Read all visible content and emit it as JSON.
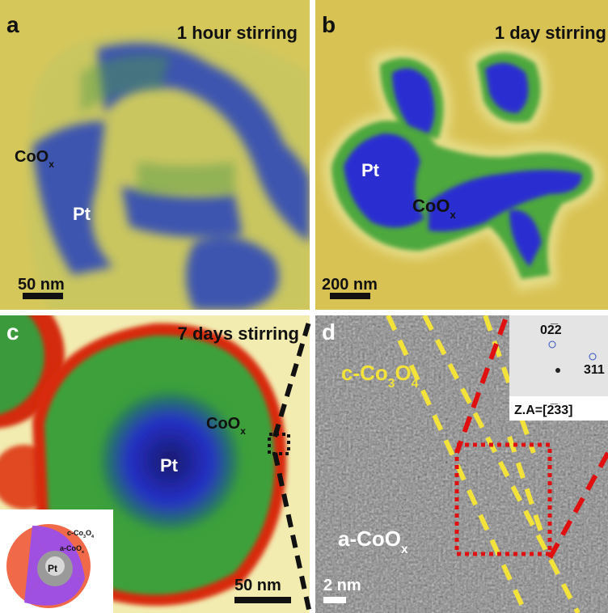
{
  "panels": [
    {
      "label": "a",
      "title": "1 hour stirring",
      "scale_bar": "50 nm",
      "labels": [
        [
          {
            "text": "CoO"
          },
          {
            "text": "x",
            "sub": true
          }
        ],
        [
          {
            "text": "Pt"
          }
        ]
      ]
    },
    {
      "label": "b",
      "title": "1 day stirring",
      "scale_bar": "200 nm",
      "labels": [
        [
          {
            "text": "Pt"
          }
        ],
        [
          {
            "text": "CoO"
          },
          {
            "text": "x",
            "sub": true
          }
        ]
      ]
    },
    {
      "label": "c",
      "title": "7 days stirring",
      "scale_bar": "50 nm",
      "labels": [
        [
          {
            "text": "CoO"
          },
          {
            "text": "x",
            "sub": true
          }
        ],
        [
          {
            "text": "Pt"
          }
        ]
      ],
      "schematic": [
        [
          {
            "text": "c-Co"
          },
          {
            "text": "3",
            "sub": true
          },
          {
            "text": "O"
          },
          {
            "text": "4",
            "sub": true
          }
        ],
        [
          {
            "text": "a-CoO"
          },
          {
            "text": "x",
            "sub": true
          }
        ],
        [
          {
            "text": "Pt"
          }
        ]
      ]
    },
    {
      "label": "d",
      "scale_bar": "2 nm",
      "labels": [
        [
          {
            "text": "c-Co"
          },
          {
            "text": "3",
            "sub": true
          },
          {
            "text": "O"
          },
          {
            "text": "4",
            "sub": true
          }
        ],
        [
          {
            "text": "a-CoO"
          },
          {
            "text": "x",
            "sub": true
          }
        ]
      ],
      "inset": {
        "spots": [
          "02̅2",
          "311"
        ],
        "zone_axis": "Z.A=[2̅33]"
      }
    }
  ]
}
